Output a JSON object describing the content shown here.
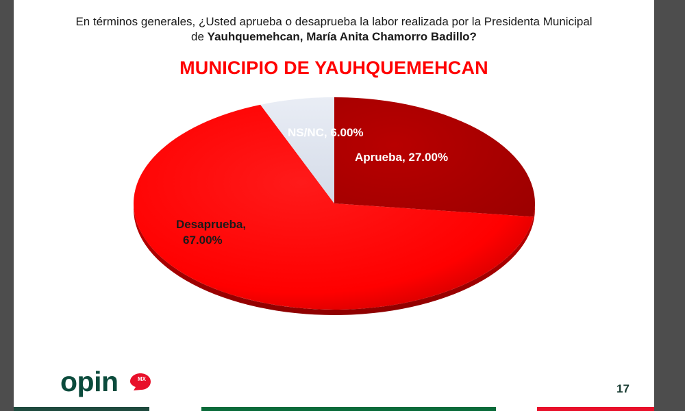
{
  "header": {
    "question_line1": "En términos generales, ¿Usted aprueba o desaprueba la labor realizada por la Presidenta Municipal",
    "question_line2_prefix": "de ",
    "question_line2_bold": "Yauhquemehcan, María Anita Chamorro Badillo?"
  },
  "chart_data": {
    "type": "pie",
    "title": "MUNICIPIO DE YAUHQUEMEHCAN",
    "slices": [
      {
        "name": "Aprueba",
        "value": 27.0,
        "label": "Aprueba, 27.00%",
        "color": "#c00000"
      },
      {
        "name": "Desaprueba",
        "value": 67.0,
        "label": "Desaprueba, 67.00%",
        "label_lines": [
          "Desaprueba,",
          "67.00%"
        ],
        "color": "#ff0000"
      },
      {
        "name": "NS/NC",
        "value": 6.0,
        "label": "NS/NC, 6.00%",
        "color": "#dde3ee"
      }
    ]
  },
  "footer": {
    "logo_text": "opin",
    "logo_badge": "MX",
    "page_number": "17",
    "colors": {
      "logo_green": "#0b4b3c",
      "logo_red": "#e8102a",
      "strip_green": "#0a6b3a",
      "strip_red": "#e8102a"
    }
  }
}
